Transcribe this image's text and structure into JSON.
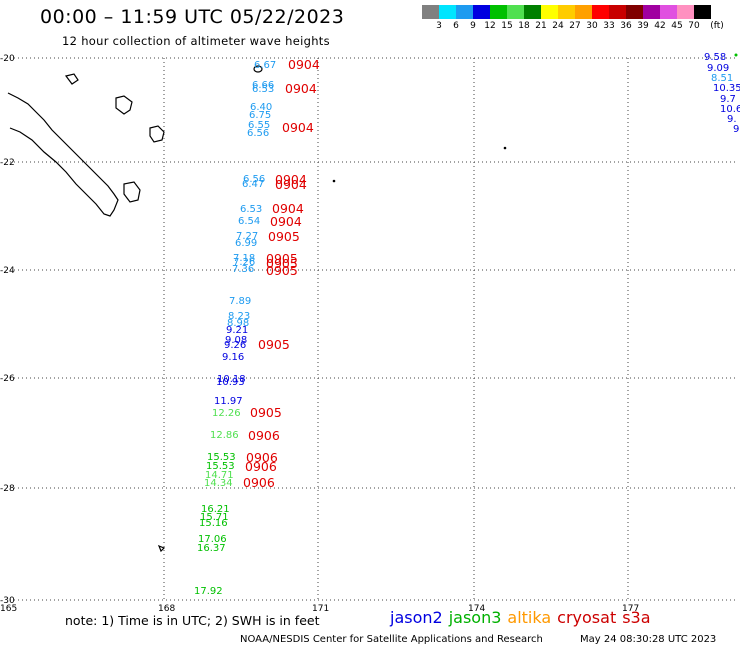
{
  "title": "00:00 – 11:59 UTC 05/22/2023",
  "subtitle": "12 hour collection of altimeter wave heights",
  "legend": {
    "unit": "(ft)",
    "colors": [
      "#808080",
      "#00e5ff",
      "#1e9bf0",
      "#0000e0",
      "#00c000",
      "#50e050",
      "#008000",
      "#ffff00",
      "#ffcc00",
      "#ffa000",
      "#ff0000",
      "#c80000",
      "#800000",
      "#a000a0",
      "#e050e0",
      "#ff90c0",
      "#000000"
    ],
    "ticks": [
      "3",
      "6",
      "9",
      "12",
      "15",
      "18",
      "21",
      "24",
      "27",
      "30",
      "33",
      "36",
      "39",
      "42",
      "45",
      "70"
    ]
  },
  "axes": {
    "lon_ticks": [
      "165",
      "168",
      "171",
      "174",
      "177"
    ],
    "lat_ticks": [
      "-20",
      "-22",
      "-24",
      "-26",
      "-28",
      "-30"
    ]
  },
  "footer": {
    "note": "note: 1) Time is in UTC; 2) SWH is in feet",
    "satellites": [
      {
        "name": "jason2",
        "color": "#0000e0"
      },
      {
        "name": "jason3",
        "color": "#00b000"
      },
      {
        "name": "altika",
        "color": "#ff9900"
      },
      {
        "name": "cryosat",
        "color": "#cc0000"
      },
      {
        "name": "s3a",
        "color": "#cc0000"
      }
    ],
    "credit": "NOAA/NESDIS Center for Satellite Applications and Research",
    "timestamp": "May 24 08:30:28 UTC 2023"
  },
  "track_main": {
    "values": [
      {
        "v": "6.67",
        "c": "#1e9bf0"
      },
      {
        "v": "6.66",
        "c": "#1e9bf0"
      },
      {
        "v": "6.53",
        "c": "#1e9bf0"
      },
      {
        "v": "6.40",
        "c": "#1e9bf0"
      },
      {
        "v": "6.75",
        "c": "#1e9bf0"
      },
      {
        "v": "6.55",
        "c": "#1e9bf0"
      },
      {
        "v": "6.56",
        "c": "#1e9bf0"
      },
      {
        "v": "6.56",
        "c": "#1e9bf0"
      },
      {
        "v": "6.47",
        "c": "#1e9bf0"
      },
      {
        "v": "6.53",
        "c": "#1e9bf0"
      },
      {
        "v": "6.54",
        "c": "#1e9bf0"
      },
      {
        "v": "7.27",
        "c": "#1e9bf0"
      },
      {
        "v": "6.99",
        "c": "#1e9bf0"
      },
      {
        "v": "7.18",
        "c": "#1e9bf0"
      },
      {
        "v": "7.26",
        "c": "#1e9bf0"
      },
      {
        "v": "7.36",
        "c": "#1e9bf0"
      },
      {
        "v": "7.89",
        "c": "#1e9bf0"
      },
      {
        "v": "8.23",
        "c": "#1e9bf0"
      },
      {
        "v": "8.98",
        "c": "#1e9bf0"
      },
      {
        "v": "9.21",
        "c": "#0000e0"
      },
      {
        "v": "9.08",
        "c": "#0000e0"
      },
      {
        "v": "9.26",
        "c": "#0000e0"
      },
      {
        "v": "9.16",
        "c": "#0000e0"
      },
      {
        "v": "10.18",
        "c": "#0000e0"
      },
      {
        "v": "10.93",
        "c": "#0000e0"
      },
      {
        "v": "11.97",
        "c": "#0000e0"
      },
      {
        "v": "12.26",
        "c": "#50e050"
      },
      {
        "v": "12.86",
        "c": "#50e050"
      },
      {
        "v": "15.53",
        "c": "#00c000"
      },
      {
        "v": "15.53",
        "c": "#00c000"
      },
      {
        "v": "14.71",
        "c": "#50e050"
      },
      {
        "v": "14.34",
        "c": "#50e050"
      },
      {
        "v": "16.21",
        "c": "#00c000"
      },
      {
        "v": "15.71",
        "c": "#00c000"
      },
      {
        "v": "15.16",
        "c": "#00c000"
      },
      {
        "v": "17.06",
        "c": "#00c000"
      },
      {
        "v": "16.37",
        "c": "#00c000"
      },
      {
        "v": "17.92",
        "c": "#00c000"
      }
    ],
    "time_labels": [
      "0904",
      "0904",
      "0904",
      "0904",
      "0904",
      "0904",
      "0904",
      "0905",
      "0905",
      "0905",
      "0905",
      "0905",
      "0905",
      "0906",
      "0906",
      "0906",
      "0906"
    ]
  },
  "track_right": {
    "values": [
      {
        "v": "9.58",
        "c": "#0000e0"
      },
      {
        "v": "9.09",
        "c": "#0000e0"
      },
      {
        "v": "8.51",
        "c": "#1e9bf0"
      },
      {
        "v": "10.35",
        "c": "#0000e0"
      },
      {
        "v": "9.7",
        "c": "#0000e0"
      },
      {
        "v": "10.6",
        "c": "#0000e0"
      },
      {
        "v": "9.",
        "c": "#0000e0"
      },
      {
        "v": "9",
        "c": "#0000e0"
      }
    ]
  }
}
